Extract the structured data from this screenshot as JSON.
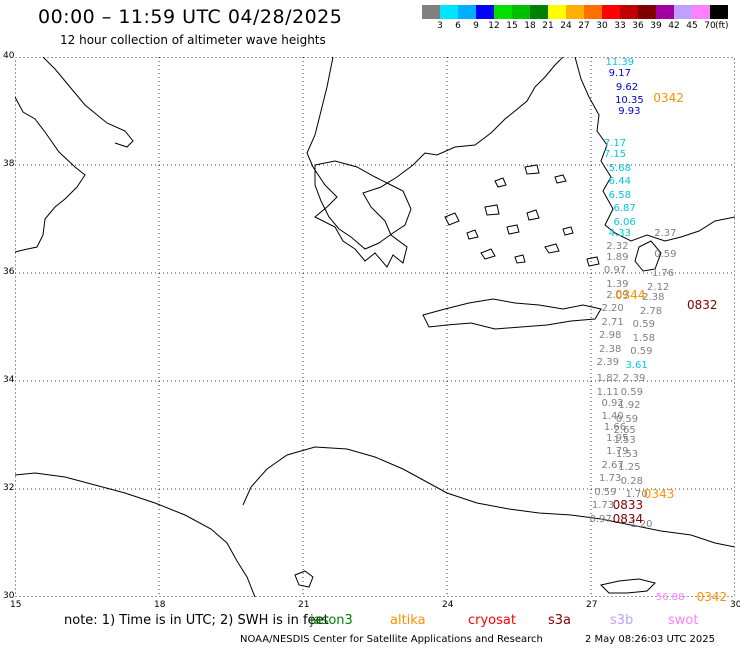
{
  "header": {
    "title": "00:00 – 11:59 UTC 04/28/2025",
    "subtitle": "12 hour collection of altimeter wave heights"
  },
  "colorbar": {
    "colors": [
      "#808080",
      "#00e5ff",
      "#00b0ff",
      "#0000ff",
      "#00e000",
      "#00c000",
      "#008000",
      "#ffff00",
      "#ffb000",
      "#ff7000",
      "#ff0000",
      "#c00000",
      "#800000",
      "#a000a0",
      "#c0a0ff",
      "#ff80ff",
      "#000000"
    ],
    "labels": [
      "3",
      "6",
      "9",
      "12",
      "15",
      "18",
      "21",
      "24",
      "27",
      "30",
      "33",
      "36",
      "39",
      "42",
      "45",
      "70"
    ],
    "unit": "(ft)"
  },
  "axes": {
    "lon_labels": [
      "15",
      "18",
      "21",
      "24",
      "27",
      "30"
    ],
    "lat_labels": [
      "40",
      "38",
      "36",
      "34",
      "32",
      "30"
    ]
  },
  "wave_heights": [
    {
      "lat": 39.9,
      "lon": 27.6,
      "text": "11.39",
      "color": "#00c8e0"
    },
    {
      "lat": 39.7,
      "lon": 27.6,
      "text": "9.17",
      "color": "#0000cc"
    },
    {
      "lat": 39.45,
      "lon": 27.75,
      "text": "9.62",
      "color": "#0000cc"
    },
    {
      "lat": 39.2,
      "lon": 27.8,
      "text": "10.35",
      "color": "#0000cc"
    },
    {
      "lat": 39.0,
      "lon": 27.8,
      "text": "9.93",
      "color": "#0000cc"
    },
    {
      "lat": 38.4,
      "lon": 27.5,
      "text": "7.17",
      "color": "#00c8e0"
    },
    {
      "lat": 38.2,
      "lon": 27.5,
      "text": "7.15",
      "color": "#00c8e0"
    },
    {
      "lat": 37.95,
      "lon": 27.6,
      "text": "5.68",
      "color": "#00c8e0"
    },
    {
      "lat": 37.7,
      "lon": 27.6,
      "text": "6.44",
      "color": "#00c8e0"
    },
    {
      "lat": 37.45,
      "lon": 27.6,
      "text": "6.58",
      "color": "#00c8e0"
    },
    {
      "lat": 37.2,
      "lon": 27.7,
      "text": "6.87",
      "color": "#00c8e0"
    },
    {
      "lat": 36.95,
      "lon": 27.7,
      "text": "6.06",
      "color": "#00c8e0"
    },
    {
      "lat": 36.75,
      "lon": 27.6,
      "text": "4.33",
      "color": "#00c8e0"
    },
    {
      "lat": 36.5,
      "lon": 27.55,
      "text": "2.32",
      "color": "#808080"
    },
    {
      "lat": 36.3,
      "lon": 27.55,
      "text": "1.89",
      "color": "#808080"
    },
    {
      "lat": 36.05,
      "lon": 27.5,
      "text": "0.97",
      "color": "#808080"
    },
    {
      "lat": 35.8,
      "lon": 27.55,
      "text": "1.39",
      "color": "#808080"
    },
    {
      "lat": 35.6,
      "lon": 27.55,
      "text": "2.09",
      "color": "#808080"
    },
    {
      "lat": 35.35,
      "lon": 27.45,
      "text": "2.20",
      "color": "#808080"
    },
    {
      "lat": 35.1,
      "lon": 27.45,
      "text": "2.71",
      "color": "#808080"
    },
    {
      "lat": 34.85,
      "lon": 27.4,
      "text": "2.98",
      "color": "#808080"
    },
    {
      "lat": 34.6,
      "lon": 27.4,
      "text": "2.38",
      "color": "#808080"
    },
    {
      "lat": 34.35,
      "lon": 27.35,
      "text": "2.39",
      "color": "#808080"
    },
    {
      "lat": 34.05,
      "lon": 27.35,
      "text": "1.82",
      "color": "#808080"
    },
    {
      "lat": 33.8,
      "lon": 27.35,
      "text": "1.11",
      "color": "#808080"
    },
    {
      "lat": 33.6,
      "lon": 27.45,
      "text": "0.92",
      "color": "#808080"
    },
    {
      "lat": 33.35,
      "lon": 27.45,
      "text": "1.40",
      "color": "#808080"
    },
    {
      "lat": 33.15,
      "lon": 27.5,
      "text": "1.66",
      "color": "#808080"
    },
    {
      "lat": 32.95,
      "lon": 27.55,
      "text": "1.95",
      "color": "#808080"
    },
    {
      "lat": 32.7,
      "lon": 27.55,
      "text": "1.79",
      "color": "#808080"
    },
    {
      "lat": 32.45,
      "lon": 27.45,
      "text": "2.67",
      "color": "#808080"
    },
    {
      "lat": 32.2,
      "lon": 27.4,
      "text": "1.73",
      "color": "#808080"
    },
    {
      "lat": 31.95,
      "lon": 27.3,
      "text": "0.59",
      "color": "#808080"
    },
    {
      "lat": 31.7,
      "lon": 27.25,
      "text": "1.73",
      "color": "#808080"
    },
    {
      "lat": 31.45,
      "lon": 27.2,
      "text": "0.97",
      "color": "#808080"
    },
    {
      "lat": 36.75,
      "lon": 28.55,
      "text": "2.37",
      "color": "#808080"
    },
    {
      "lat": 36.35,
      "lon": 28.55,
      "text": "0.59",
      "color": "#808080"
    },
    {
      "lat": 36.0,
      "lon": 28.5,
      "text": "1.76",
      "color": "#808080"
    },
    {
      "lat": 35.75,
      "lon": 28.4,
      "text": "2.12",
      "color": "#808080"
    },
    {
      "lat": 35.55,
      "lon": 28.3,
      "text": "2.38",
      "color": "#808080"
    },
    {
      "lat": 35.3,
      "lon": 28.25,
      "text": "2.78",
      "color": "#808080"
    },
    {
      "lat": 35.05,
      "lon": 28.1,
      "text": "0.59",
      "color": "#808080"
    },
    {
      "lat": 34.8,
      "lon": 28.1,
      "text": "1.58",
      "color": "#808080"
    },
    {
      "lat": 34.55,
      "lon": 28.05,
      "text": "0.59",
      "color": "#808080"
    },
    {
      "lat": 34.3,
      "lon": 27.95,
      "text": "3.61",
      "color": "#00c8e0"
    },
    {
      "lat": 34.05,
      "lon": 27.9,
      "text": "2.39",
      "color": "#808080"
    },
    {
      "lat": 33.8,
      "lon": 27.85,
      "text": "0.59",
      "color": "#808080"
    },
    {
      "lat": 33.55,
      "lon": 27.8,
      "text": "1.92",
      "color": "#808080"
    },
    {
      "lat": 33.3,
      "lon": 27.75,
      "text": "0.59",
      "color": "#808080"
    },
    {
      "lat": 33.1,
      "lon": 27.7,
      "text": "2.65",
      "color": "#808080"
    },
    {
      "lat": 32.9,
      "lon": 27.7,
      "text": "1.53",
      "color": "#808080"
    },
    {
      "lat": 32.65,
      "lon": 27.75,
      "text": "1.53",
      "color": "#808080"
    },
    {
      "lat": 32.4,
      "lon": 27.8,
      "text": "1.25",
      "color": "#808080"
    },
    {
      "lat": 32.15,
      "lon": 27.85,
      "text": "0.28",
      "color": "#808080"
    },
    {
      "lat": 31.9,
      "lon": 27.95,
      "text": "1.70",
      "color": "#808080"
    },
    {
      "lat": 31.35,
      "lon": 28.05,
      "text": "1.20",
      "color": "#808080"
    },
    {
      "lat": 30.0,
      "lon": 28.65,
      "text": "56.88",
      "color": "#ff80ff"
    }
  ],
  "passes": [
    {
      "lat": 39.25,
      "lon": 28.3,
      "text": "0342",
      "color": "#ff9000"
    },
    {
      "lat": 35.6,
      "lon": 27.5,
      "text": "0344",
      "color": "#ff9000"
    },
    {
      "lat": 35.4,
      "lon": 29.0,
      "text": "0832",
      "color": "#800000"
    },
    {
      "lat": 31.9,
      "lon": 28.1,
      "text": "0343",
      "color": "#ff9000"
    },
    {
      "lat": 31.7,
      "lon": 27.45,
      "text": "0833",
      "color": "#800000"
    },
    {
      "lat": 31.45,
      "lon": 27.45,
      "text": "0834",
      "color": "#800000"
    },
    {
      "lat": 30.0,
      "lon": 29.2,
      "text": "0342",
      "color": "#ff9000"
    }
  ],
  "footer": {
    "note": "note:  1) Time is in UTC;  2) SWH is in feet",
    "legend": [
      {
        "label": "jason3",
        "color": "#008000"
      },
      {
        "label": "altika",
        "color": "#ff9000"
      },
      {
        "label": "cryosat",
        "color": "#ff0000"
      },
      {
        "label": "s3a",
        "color": "#800000"
      },
      {
        "label": "s3b",
        "color": "#c0a0ff"
      },
      {
        "label": "swot",
        "color": "#ff80ff"
      }
    ],
    "credit": "NOAA/NESDIS Center for Satellite Applications and Research",
    "timestamp": "2 May 08:26:03 UTC 2025"
  }
}
